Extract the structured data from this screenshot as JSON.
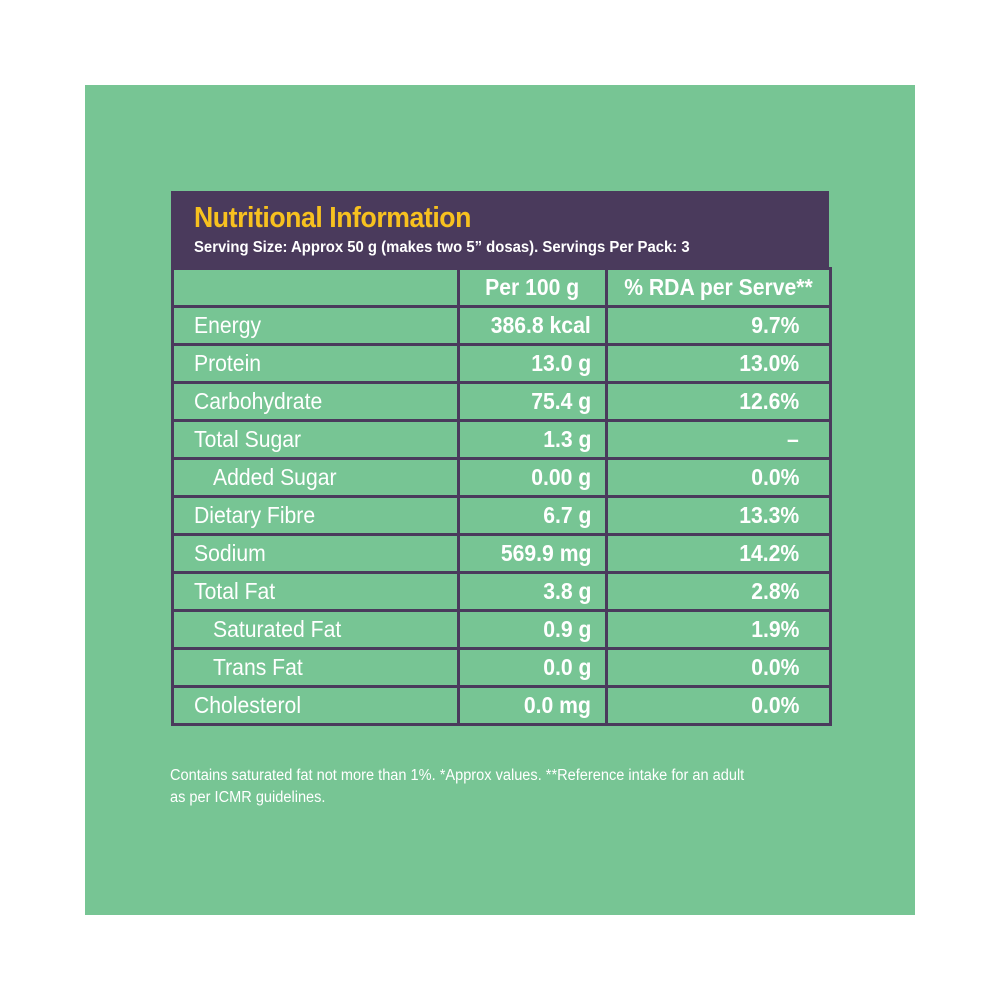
{
  "label": {
    "title": "Nutritional Information",
    "serving": "Serving Size: Approx 50 g (makes two 5” dosas). Servings Per Pack: 3",
    "columns": [
      "",
      "Per 100 g",
      "% RDA per Serve**"
    ],
    "rows": [
      {
        "name": "Energy",
        "per100": "386.8 kcal",
        "rda": "9.7%",
        "indent": false
      },
      {
        "name": "Protein",
        "per100": "13.0 g",
        "rda": "13.0%",
        "indent": false
      },
      {
        "name": "Carbohydrate",
        "per100": "75.4 g",
        "rda": "12.6%",
        "indent": false
      },
      {
        "name": "Total Sugar",
        "per100": "1.3 g",
        "rda": "–",
        "indent": false
      },
      {
        "name": "Added Sugar",
        "per100": "0.00 g",
        "rda": "0.0%",
        "indent": true
      },
      {
        "name": "Dietary Fibre",
        "per100": "6.7 g",
        "rda": "13.3%",
        "indent": false
      },
      {
        "name": "Sodium",
        "per100": "569.9 mg",
        "rda": "14.2%",
        "indent": false
      },
      {
        "name": "Total Fat",
        "per100": "3.8 g",
        "rda": "2.8%",
        "indent": false
      },
      {
        "name": "Saturated Fat",
        "per100": "0.9 g",
        "rda": "1.9%",
        "indent": true
      },
      {
        "name": "Trans Fat",
        "per100": "0.0 g",
        "rda": "0.0%",
        "indent": true
      },
      {
        "name": "Cholesterol",
        "per100": "0.0 mg",
        "rda": "0.0%",
        "indent": false
      }
    ],
    "footnote_line1": "Contains saturated fat not more than 1%. *Approx values. **Reference intake for an adult",
    "footnote_line2": "as per ICMR guidelines."
  },
  "colors": {
    "background": "#77c594",
    "header": "#4a3a5c",
    "title": "#f7c11f",
    "text": "#ffffff"
  }
}
